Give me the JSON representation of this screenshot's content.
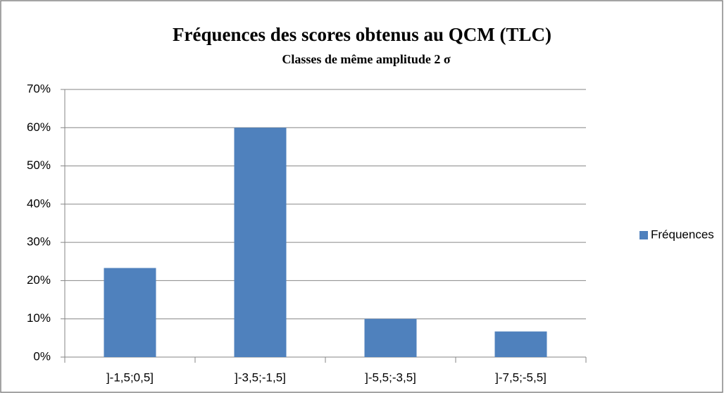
{
  "chart_data": {
    "type": "bar",
    "title": "Fréquences des scores obtenus au QCM (TLC)",
    "subtitle": "Classes de même amplitude 2 σ",
    "categories": [
      "]-1,5;0,5]",
      "]-3,5;-1,5]",
      "]-5,5;-3,5]",
      "]-7,5;-5,5]"
    ],
    "series": [
      {
        "name": "Fréquences",
        "color": "#4f81bd",
        "values": [
          23.3,
          60,
          10,
          6.7
        ]
      }
    ],
    "ylim": [
      0,
      70
    ],
    "yticks": [
      {
        "value": 0,
        "label": "0%"
      },
      {
        "value": 10,
        "label": "10%"
      },
      {
        "value": 20,
        "label": "20%"
      },
      {
        "value": 30,
        "label": "30%"
      },
      {
        "value": 40,
        "label": "40%"
      },
      {
        "value": 50,
        "label": "50%"
      },
      {
        "value": 60,
        "label": "60%"
      },
      {
        "value": 70,
        "label": "70%"
      }
    ],
    "grid": true,
    "legend": "right"
  }
}
